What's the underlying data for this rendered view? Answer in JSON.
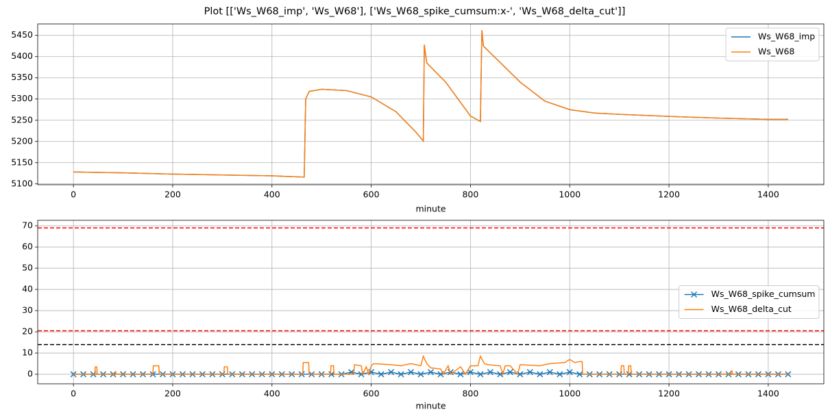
{
  "title": "Plot [['Ws_W68_imp', 'Ws_W68'], ['Ws_W68_spike_cumsum:x-', 'Ws_W68_delta_cut']]",
  "chart_data": [
    {
      "type": "line",
      "xlabel": "minute",
      "x": [
        0,
        100,
        200,
        300,
        400,
        465,
        468,
        475,
        500,
        550,
        600,
        650,
        690,
        705,
        707,
        712,
        750,
        800,
        820,
        823,
        826,
        900,
        950,
        1000,
        1050,
        1100,
        1200,
        1300,
        1400,
        1440
      ],
      "series": [
        {
          "name": "Ws_W68_imp",
          "color": "#1f77b4",
          "values": [
            5128,
            5126,
            5123,
            5121,
            5119,
            5116,
            5300,
            5318,
            5323,
            5320,
            5305,
            5270,
            5222,
            5201,
            5428,
            5385,
            5340,
            5260,
            5247,
            5462,
            5425,
            5340,
            5295,
            5275,
            5267,
            5264,
            5259,
            5255,
            5252,
            5252
          ]
        },
        {
          "name": "Ws_W68",
          "color": "#ff7f0e",
          "values": [
            5128,
            5126,
            5123,
            5121,
            5119,
            5116,
            5300,
            5318,
            5323,
            5320,
            5305,
            5270,
            5222,
            5201,
            5428,
            5385,
            5340,
            5260,
            5247,
            5462,
            5425,
            5340,
            5295,
            5275,
            5267,
            5264,
            5259,
            5255,
            5252,
            5252
          ]
        }
      ],
      "xlim": [
        -72,
        1512
      ],
      "xticks": [
        0,
        200,
        400,
        600,
        800,
        1000,
        1200,
        1400
      ],
      "ylim": [
        5098,
        5477
      ],
      "yticks": [
        5100,
        5150,
        5200,
        5250,
        5300,
        5350,
        5400,
        5450
      ],
      "grid": true,
      "legend_loc": "upper right"
    },
    {
      "type": "line",
      "xlabel": "minute",
      "series": [
        {
          "name": "Ws_W68_spike_cumsum",
          "color": "#1f77b4",
          "marker": "x",
          "x": [
            0,
            20,
            40,
            60,
            80,
            100,
            120,
            140,
            160,
            180,
            200,
            220,
            240,
            260,
            280,
            300,
            320,
            340,
            360,
            380,
            400,
            420,
            440,
            460,
            480,
            500,
            520,
            540,
            560,
            580,
            600,
            620,
            640,
            660,
            680,
            700,
            720,
            740,
            760,
            780,
            800,
            820,
            840,
            860,
            880,
            900,
            920,
            940,
            960,
            980,
            1000,
            1020,
            1040,
            1060,
            1080,
            1100,
            1120,
            1140,
            1160,
            1180,
            1200,
            1220,
            1240,
            1260,
            1280,
            1300,
            1320,
            1340,
            1360,
            1380,
            1400,
            1420,
            1440
          ],
          "values": [
            0,
            0,
            0,
            0,
            0,
            0,
            0,
            0,
            0,
            0,
            0,
            0,
            0,
            0,
            0,
            0,
            0,
            0,
            0,
            0,
            0,
            0,
            0,
            0,
            0,
            0,
            0,
            0,
            1,
            0,
            1,
            0,
            1,
            0,
            1,
            0,
            1,
            0,
            1,
            0,
            1,
            0,
            1,
            0,
            1,
            0,
            1,
            0,
            1,
            0,
            1,
            0,
            0,
            0,
            0,
            0,
            0,
            0,
            0,
            0,
            0,
            0,
            0,
            0,
            0,
            0,
            0,
            0,
            0,
            0,
            0,
            0,
            0
          ]
        },
        {
          "name": "Ws_W68_delta_cut",
          "color": "#ff7f0e",
          "x": [
            0,
            43,
            44,
            47,
            48,
            84,
            85,
            86,
            160,
            161,
            172,
            173,
            303,
            304,
            310,
            311,
            462,
            463,
            474,
            475,
            518,
            519,
            524,
            525,
            565,
            566,
            580,
            583,
            590,
            595,
            600,
            605,
            640,
            660,
            680,
            700,
            705,
            712,
            720,
            740,
            745,
            755,
            760,
            780,
            790,
            800,
            815,
            820,
            828,
            835,
            860,
            865,
            870,
            880,
            895,
            900,
            940,
            960,
            990,
            1000,
            1010,
            1020,
            1025,
            1026,
            1103,
            1104,
            1109,
            1110,
            1118,
            1119,
            1123,
            1124,
            1324,
            1325,
            1327,
            1328,
            1440
          ],
          "values": [
            0,
            0,
            3.5,
            3.5,
            0,
            0,
            1.5,
            0,
            0,
            4,
            4,
            0,
            0,
            3.5,
            3.5,
            0,
            0,
            5.5,
            5.5,
            0,
            0,
            4,
            4,
            0,
            0,
            4.5,
            4,
            0,
            3.5,
            0,
            4,
            5,
            4.5,
            4,
            5,
            4,
            8.5,
            5,
            3,
            2.5,
            0,
            4,
            0,
            3.5,
            0,
            4,
            4,
            8.5,
            5,
            4.5,
            4,
            0,
            4,
            4,
            0,
            4.5,
            4,
            5,
            5.5,
            7,
            5.5,
            6,
            6,
            0,
            0,
            4,
            4,
            0,
            0,
            4,
            4,
            0,
            0,
            1.5,
            1.5,
            0,
            0
          ]
        }
      ],
      "hlines": [
        {
          "value": 69,
          "color": "#ff0000",
          "linestyle": "dashed"
        },
        {
          "value": 20.5,
          "color": "#ff0000",
          "linestyle": "dashed"
        },
        {
          "value": 14,
          "color": "#000000",
          "linestyle": "dashed"
        }
      ],
      "xlim": [
        -72,
        1512
      ],
      "xticks": [
        0,
        200,
        400,
        600,
        800,
        1000,
        1200,
        1400
      ],
      "ylim": [
        -4.5,
        72.6
      ],
      "yticks": [
        0,
        10,
        20,
        30,
        40,
        50,
        60,
        70
      ],
      "grid": true,
      "legend_loc": "center right"
    }
  ]
}
